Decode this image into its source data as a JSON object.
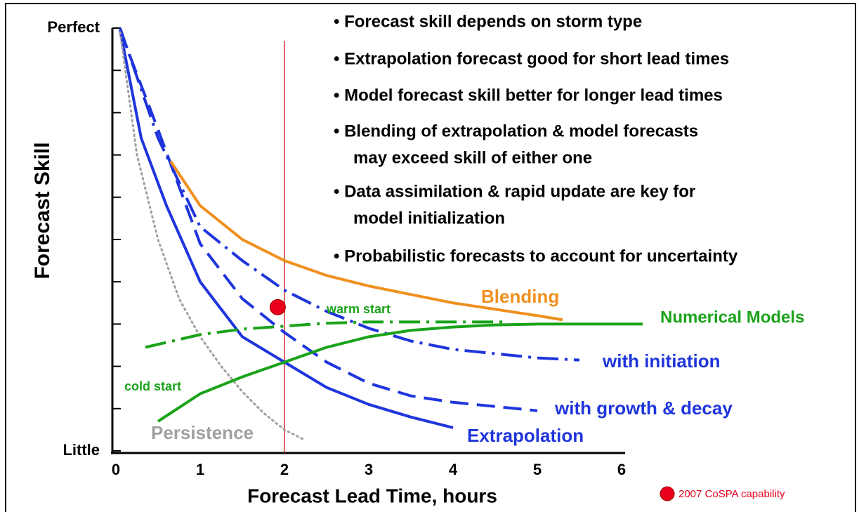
{
  "chart_data": {
    "type": "line",
    "xlabel": "Forecast Lead Time, hours",
    "ylabel": "Forecast Skill",
    "xlim": [
      0,
      6
    ],
    "xticks": [
      0,
      1,
      2,
      3,
      4,
      5,
      6
    ],
    "ylim": [
      0,
      10
    ],
    "yticks": [
      {
        "value": 0,
        "label": "Little"
      },
      {
        "value": 1,
        "label": null
      },
      {
        "value": 2,
        "label": null
      },
      {
        "value": 3,
        "label": null
      },
      {
        "value": 4,
        "label": null
      },
      {
        "value": 5,
        "label": null
      },
      {
        "value": 6,
        "label": null
      },
      {
        "value": 7,
        "label": null
      },
      {
        "value": 8,
        "label": null
      },
      {
        "value": 9,
        "label": null
      },
      {
        "value": 10,
        "label": "Perfect"
      }
    ],
    "series": [
      {
        "name": "Extrapolation",
        "color": "#1f35dc",
        "dash": "solid",
        "x": [
          0.05,
          0.3,
          0.6,
          1.0,
          1.5,
          2.0,
          2.5,
          3.0,
          3.5,
          4.0
        ],
        "values": [
          9.95,
          7.4,
          5.8,
          4.0,
          2.7,
          2.1,
          1.5,
          1.1,
          0.8,
          0.55
        ]
      },
      {
        "name": "with growth & decay",
        "color": "#1f35dc",
        "dash": "dashed",
        "x": [
          0.05,
          0.5,
          1.0,
          1.5,
          2.0,
          2.5,
          3.0,
          3.5,
          4.0,
          4.5,
          5.0
        ],
        "values": [
          9.95,
          7.6,
          4.9,
          3.6,
          2.8,
          2.1,
          1.6,
          1.3,
          1.15,
          1.05,
          0.95
        ]
      },
      {
        "name": "with initiation",
        "color": "#1f35dc",
        "dash": "dashdot",
        "x": [
          0.05,
          0.5,
          1.0,
          1.5,
          2.0,
          2.5,
          3.0,
          3.5,
          4.0,
          4.5,
          5.0,
          5.5
        ],
        "values": [
          10,
          7.4,
          5.3,
          4.5,
          3.8,
          3.3,
          2.9,
          2.6,
          2.4,
          2.3,
          2.2,
          2.15
        ]
      },
      {
        "name": "Persistence",
        "color": "#a0a0a0",
        "dash": "dotted",
        "x": [
          0.05,
          0.25,
          0.5,
          0.75,
          1.0,
          1.25,
          1.5,
          1.75,
          2.0,
          2.25
        ],
        "values": [
          9.9,
          7.0,
          5.0,
          3.6,
          2.7,
          2.0,
          1.4,
          0.9,
          0.5,
          0.25
        ]
      },
      {
        "name": "Blending",
        "color": "#f0901e",
        "dash": "solid",
        "x": [
          0.65,
          1.0,
          1.5,
          2.0,
          2.5,
          3.0,
          3.5,
          4.0,
          4.5,
          5.0,
          5.3
        ],
        "values": [
          6.85,
          5.8,
          5.0,
          4.5,
          4.15,
          3.9,
          3.7,
          3.5,
          3.35,
          3.2,
          3.1
        ]
      },
      {
        "name": "warm start",
        "color": "#1aa31a",
        "dash": "dashdot",
        "x": [
          0.35,
          1.0,
          1.5,
          2.0,
          2.5,
          3.0,
          3.5,
          4.0,
          4.6
        ],
        "values": [
          2.45,
          2.75,
          2.88,
          2.95,
          3.02,
          3.05,
          3.05,
          3.05,
          3.05
        ]
      },
      {
        "name": "cold start",
        "color": "#1aa31a",
        "dash": "solid",
        "x": [
          0.5,
          1.0,
          1.5,
          2.0,
          2.5,
          3.0,
          3.5,
          4.0,
          4.5,
          5.0,
          5.5,
          6.0,
          6.25
        ],
        "values": [
          0.7,
          1.35,
          1.75,
          2.1,
          2.45,
          2.7,
          2.85,
          2.93,
          2.98,
          3.0,
          3.0,
          3.0,
          3.0
        ]
      }
    ],
    "group_label": {
      "text": "Numerical Models",
      "color": "#1aa31a"
    },
    "vline": {
      "x": 2,
      "color": "#d03030"
    },
    "marker": {
      "name": "2007 CoSPA capability",
      "x": 1.92,
      "y": 3.4,
      "color": "#e8001c"
    },
    "bullets": [
      [
        "• Forecast skill depends on storm type"
      ],
      [
        "• Extrapolation forecast good for short lead times"
      ],
      [
        "• Model forecast skill better for longer lead times"
      ],
      [
        "• Blending of extrapolation & model forecasts",
        "may exceed skill of either one"
      ],
      [
        "• Data assimilation & rapid update are key for",
        "model initialization"
      ],
      [
        "• Probabilistic forecasts to account for uncertainty"
      ]
    ]
  }
}
